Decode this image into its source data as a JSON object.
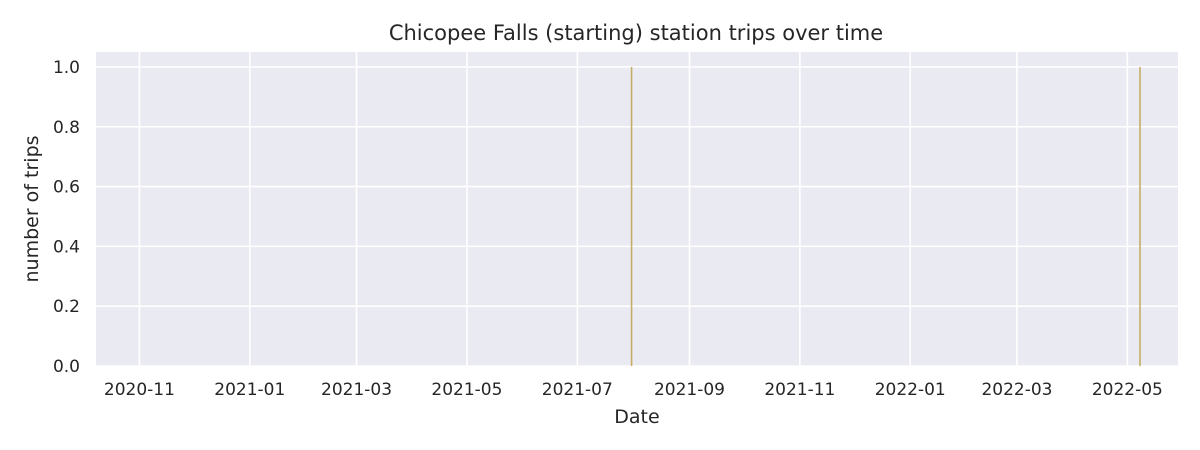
{
  "chart_data": {
    "type": "bar",
    "title": "Chicopee Falls (starting) station trips over time",
    "xlabel": "Date",
    "ylabel": "number of trips",
    "x_axis_type": "date",
    "xlim": [
      "2020-10-08",
      "2022-05-29"
    ],
    "ylim": [
      0,
      1.05
    ],
    "x_ticks": [
      "2020-11-01",
      "2021-01-01",
      "2021-03-01",
      "2021-05-01",
      "2021-07-01",
      "2021-09-01",
      "2021-11-01",
      "2022-01-01",
      "2022-03-01",
      "2022-05-01"
    ],
    "x_tick_labels": [
      "2020-11",
      "2021-01",
      "2021-03",
      "2021-05",
      "2021-07",
      "2021-09",
      "2021-11",
      "2022-01",
      "2022-03",
      "2022-05"
    ],
    "y_ticks": [
      0.0,
      0.2,
      0.4,
      0.6,
      0.8,
      1.0
    ],
    "y_tick_labels": [
      "0.0",
      "0.2",
      "0.4",
      "0.6",
      "0.8",
      "1.0"
    ],
    "grid": true,
    "series": [
      {
        "color": "#c4ad66",
        "points": [
          {
            "x": "2021-07-31",
            "y": 1
          },
          {
            "x": "2022-05-08",
            "y": 1
          }
        ]
      }
    ]
  },
  "colors": {
    "plot_background": "#eaeaf2",
    "grid": "#ffffff",
    "text": "#262626",
    "bar": "#c4ad66"
  }
}
